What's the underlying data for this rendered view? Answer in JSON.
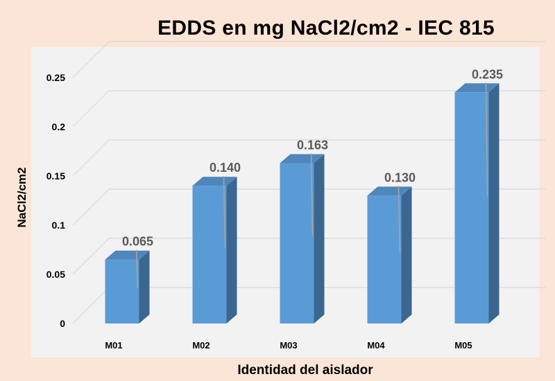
{
  "chart_data": {
    "type": "bar",
    "title": "EDDS en mg NaCl2/cm2  - IEC 815",
    "xlabel": "Identidad del aislador",
    "ylabel": "NaCl2/cm2",
    "categories": [
      "M01",
      "M02",
      "M03",
      "M04",
      "M05"
    ],
    "values": [
      0.065,
      0.14,
      0.163,
      0.13,
      0.235
    ],
    "data_labels": [
      "0.065",
      "0.140",
      "0.163",
      "0.130",
      "0.235"
    ],
    "y_ticks": [
      "0",
      "0.05",
      "0.1",
      "0.15",
      "0.2",
      "0.25"
    ],
    "ylim": [
      0,
      0.25
    ],
    "grid": true,
    "legend": "none",
    "style": "3d-column",
    "colors": {
      "bar_front": "#5b9bd5",
      "bar_side": "#3a6690",
      "bar_top": "#4f86bb",
      "grid": "#d9d9d9",
      "panel": "#f2f2f2",
      "background": "#fbe5d6",
      "label": "#595959"
    }
  }
}
